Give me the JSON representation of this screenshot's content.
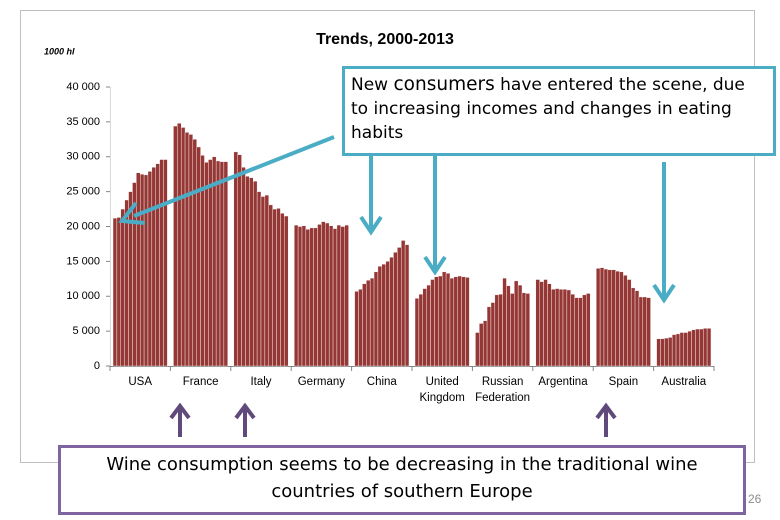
{
  "chart_data": {
    "type": "grouped-bar",
    "title": "Trends, 2000-2013",
    "y_label": "1000 hl",
    "categories": [
      "USA",
      "France",
      "Italy",
      "Germany",
      "China",
      "United Kingdom",
      "Russian Federation",
      "Argentina",
      "Spain",
      "Australia"
    ],
    "values": [
      [
        21200,
        21300,
        22500,
        23800,
        25000,
        26300,
        27700,
        27500,
        27400,
        27900,
        28500,
        29000,
        29600,
        29600
      ],
      [
        34400,
        34800,
        34200,
        33500,
        33200,
        32500,
        31400,
        30200,
        29200,
        29600,
        30000,
        29400,
        29300,
        29300
      ],
      [
        30700,
        30300,
        28500,
        27200,
        27000,
        26500,
        25000,
        24300,
        24500,
        23100,
        22500,
        22600,
        21900,
        21500
      ],
      [
        20200,
        20000,
        20100,
        19600,
        19800,
        19800,
        20300,
        20700,
        20500,
        20100,
        19700,
        20200,
        20000,
        20200
      ],
      [
        10700,
        11000,
        11800,
        12300,
        12600,
        13500,
        14300,
        14600,
        15000,
        15600,
        16300,
        17000,
        18000,
        17400
      ],
      [
        9700,
        10300,
        11100,
        11600,
        12400,
        12800,
        12900,
        13500,
        13300,
        12600,
        12800,
        12900,
        12800,
        12700
      ],
      [
        4800,
        6100,
        6500,
        8500,
        9100,
        10200,
        10300,
        12600,
        11500,
        10400,
        12200,
        11600,
        10500,
        10400
      ],
      [
        12400,
        12100,
        12400,
        11800,
        11000,
        11100,
        11000,
        11000,
        10900,
        10300,
        9800,
        9800,
        10200,
        10400
      ],
      [
        14000,
        14100,
        13900,
        13800,
        13800,
        13600,
        13500,
        13000,
        12400,
        11200,
        10800,
        9900,
        9900,
        9800
      ],
      [
        3900,
        3900,
        4000,
        4100,
        4500,
        4600,
        4800,
        4800,
        5000,
        5200,
        5300,
        5300,
        5400,
        5400
      ]
    ],
    "color": "#953735",
    "ylim": [
      0,
      40000
    ],
    "yticks": [
      0,
      {
        "value": 5000,
        "label": "5 000"
      },
      {
        "value": 10000,
        "label": "10 000"
      },
      {
        "value": 15000,
        "label": "15 000"
      },
      {
        "value": 20000,
        "label": "20 000"
      },
      {
        "value": 25000,
        "label": "25 000"
      },
      {
        "value": 30000,
        "label": "30 000"
      },
      {
        "value": 35000,
        "label": "35 000"
      },
      {
        "value": 40000,
        "label": "40 000"
      }
    ],
    "grid": false,
    "annotations": [
      {
        "parts": [
          "New ",
          "consumers",
          " have entered the scene, due to increasing incomes and changes in eating habits"
        ]
      },
      {
        "text": "Wine consumption seems to be decreasing in the traditional wine countries of southern Europe"
      }
    ]
  },
  "page_number": "26"
}
